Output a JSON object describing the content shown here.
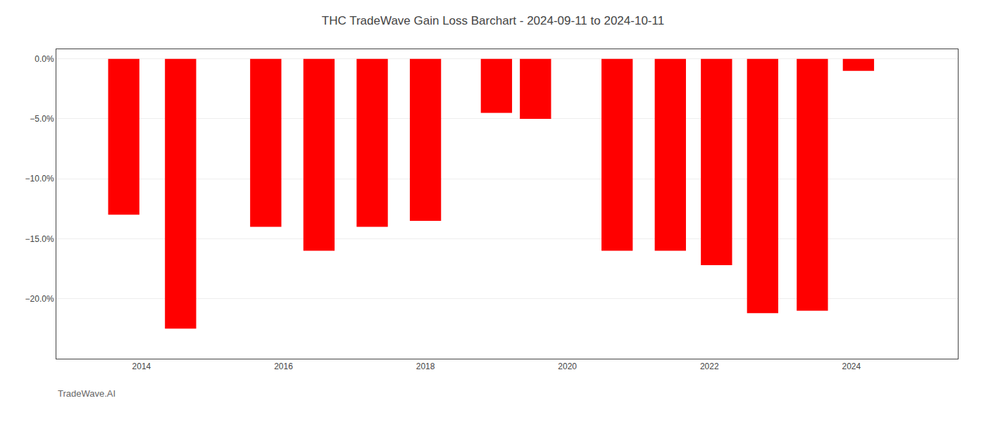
{
  "chart_data": {
    "type": "bar",
    "title": "THC TradeWave Gain Loss Barchart - 2024-09-11 to 2024-10-11",
    "annotations": [
      "TradeWave.AI"
    ],
    "x": [
      2013.75,
      2014.55,
      2015.75,
      2016.5,
      2017.25,
      2018.0,
      2019.0,
      2019.55,
      2020.7,
      2021.45,
      2022.1,
      2022.75,
      2023.45,
      2024.1
    ],
    "values": [
      -13.0,
      -22.5,
      -14.0,
      -16.0,
      -14.0,
      -13.5,
      -4.5,
      -5.0,
      -16.0,
      -16.0,
      -17.2,
      -21.2,
      -21.0,
      -1.0
    ],
    "color": "#ff0000",
    "xlim": [
      2012.8,
      2025.5
    ],
    "xticks": [
      2014,
      2016,
      2018,
      2020,
      2022,
      2024
    ],
    "ylim": [
      -25,
      0.8
    ],
    "yticks": [
      {
        "value": 0.0,
        "label": "0.0%"
      },
      {
        "value": -5.0,
        "label": "−5.0%"
      },
      {
        "value": -10.0,
        "label": "−10.0%"
      },
      {
        "value": -15.0,
        "label": "−15.0%"
      },
      {
        "value": -20.0,
        "label": "−20.0%"
      }
    ],
    "grid": true
  }
}
